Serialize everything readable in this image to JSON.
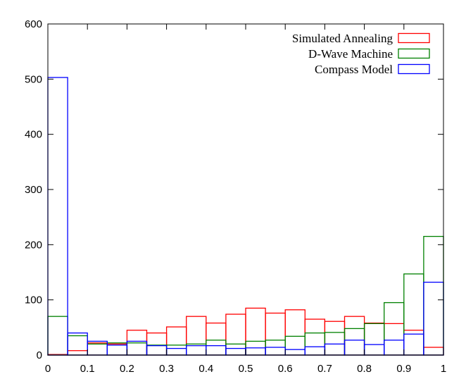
{
  "chart_data": {
    "type": "bar",
    "title": "",
    "xlabel": "",
    "ylabel": "",
    "xlim": [
      0,
      1
    ],
    "ylim": [
      0,
      600
    ],
    "grid": false,
    "legend_position": "top-right",
    "bin_edges": [
      0,
      0.05,
      0.1,
      0.15,
      0.2,
      0.25,
      0.3,
      0.35,
      0.4,
      0.45,
      0.5,
      0.55,
      0.6,
      0.65,
      0.7,
      0.75,
      0.8,
      0.85,
      0.9,
      0.95,
      1.0
    ],
    "x_tick_labels": [
      "0",
      "0.1",
      "0.2",
      "0.3",
      "0.4",
      "0.5",
      "0.6",
      "0.7",
      "0.8",
      "0.9",
      "1"
    ],
    "y_tick_labels": [
      "0",
      "100",
      "200",
      "300",
      "400",
      "500",
      "600"
    ],
    "series": [
      {
        "name": "Simulated Annealing",
        "color": "#ff0000",
        "values": [
          1,
          8,
          22,
          20,
          45,
          40,
          51,
          70,
          58,
          74,
          85,
          76,
          82,
          65,
          61,
          70,
          58,
          57,
          45,
          14
        ]
      },
      {
        "name": "D-Wave Machine",
        "color": "#008000",
        "values": [
          70,
          35,
          20,
          22,
          22,
          18,
          18,
          20,
          27,
          20,
          25,
          27,
          34,
          40,
          41,
          48,
          57,
          95,
          147,
          215
        ]
      },
      {
        "name": "Compass Model",
        "color": "#0000ff",
        "values": [
          503,
          40,
          25,
          18,
          25,
          17,
          12,
          17,
          17,
          12,
          13,
          14,
          10,
          15,
          20,
          27,
          19,
          27,
          38,
          132
        ]
      }
    ]
  }
}
